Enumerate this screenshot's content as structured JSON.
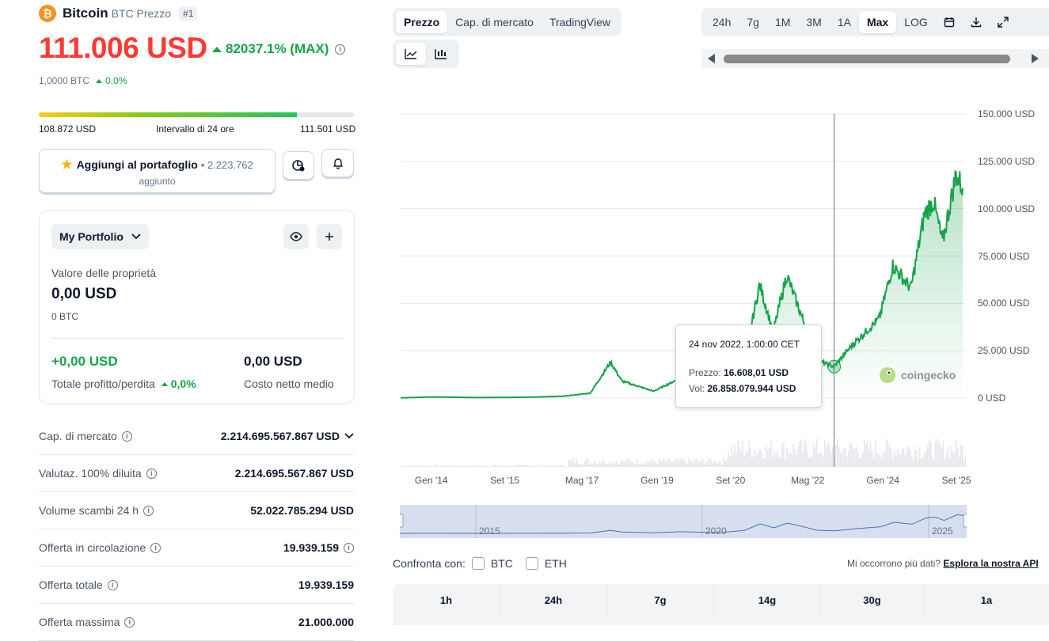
{
  "coin": {
    "logo_symbol": "₿",
    "name": "Bitcoin",
    "subtitle": "BTC Prezzo",
    "rank": "#1"
  },
  "price": {
    "value": "111.006 USD",
    "change": "82037.1% (MAX)",
    "btc_value": "1,0000 BTC",
    "btc_change": "0.0%"
  },
  "range24h": {
    "low": "108.872 USD",
    "label": "Intervallo di 24 ore",
    "high": "111.501 USD",
    "position_fraction": 0.82
  },
  "portfolio_button": {
    "label": "Aggiungi al portafoglio",
    "count": "• 2.223.762",
    "sub": "aggiunto"
  },
  "portfolio_card": {
    "dropdown_label": "My Portfolio",
    "holdings_label": "Valore delle proprietà",
    "holdings_value": "0,00 USD",
    "holdings_btc": "0 BTC",
    "pnl_value": "+0,00 USD",
    "pnl_label": "Totale profitto/perdita",
    "pnl_change": "0,0%",
    "cost_value": "0,00 USD",
    "cost_label": "Costo netto medio"
  },
  "stats": [
    {
      "key": "Cap. di mercato",
      "value": "2.214.695.567.867 USD"
    },
    {
      "key": "Valutaz. 100% diluita",
      "value": "2.214.695.567.867 USD"
    },
    {
      "key": "Volume scambi 24 h",
      "value": "52.022.785.294 USD"
    },
    {
      "key": "Offerta in circolazione",
      "value": "19.939.159"
    },
    {
      "key": "Offerta totale",
      "value": "19.939.159"
    },
    {
      "key": "Offerta massima",
      "value": "21.000.000"
    }
  ],
  "chart_tabs": [
    "Prezzo",
    "Cap. di mercato",
    "TradingView"
  ],
  "range_tabs": [
    "24h",
    "7g",
    "1M",
    "3M",
    "1A",
    "Max",
    "LOG"
  ],
  "active_range": "Max",
  "chart_data": {
    "type": "area",
    "yticks": [
      "150.000 USD",
      "125.000 USD",
      "100.000 USD",
      "75.000 USD",
      "50.000 USD",
      "25.000 USD",
      "0 USD"
    ],
    "ylim": [
      0,
      150000
    ],
    "xticks": [
      "Gen '14",
      "Set '15",
      "Mag '17",
      "Gen '19",
      "Set '20",
      "Mag '22",
      "Gen '24",
      "Set '25"
    ],
    "navigator_labels": [
      "2015",
      "2020",
      "2025"
    ],
    "series": [
      {
        "color": "#16a34a",
        "x": [
          2013.3,
          2014.0,
          2015.0,
          2016.0,
          2016.9,
          2017.5,
          2017.95,
          2018.2,
          2018.9,
          2019.5,
          2020.0,
          2020.5,
          2020.9,
          2021.25,
          2021.55,
          2021.85,
          2022.2,
          2022.5,
          2022.9,
          2023.3,
          2023.9,
          2024.2,
          2024.6,
          2024.9,
          2025.1,
          2025.3,
          2025.6,
          2025.75
        ],
        "y": [
          100,
          600,
          250,
          420,
          950,
          2600,
          19000,
          9000,
          3600,
          10500,
          7200,
          9200,
          19000,
          60000,
          35000,
          65000,
          42000,
          20000,
          16608,
          28000,
          42000,
          70000,
          58000,
          97000,
          104000,
          82000,
          118000,
          111006
        ]
      }
    ],
    "tooltip": {
      "date": "24 nov 2022, 1:00:00 CET",
      "price_label": "Prezzo:",
      "price": "16.608,01 USD",
      "vol_label": "Vol:",
      "volume": "26.858.079.944 USD"
    },
    "watermark": "coingecko"
  },
  "compare": {
    "label": "Confronta con:",
    "options": [
      "BTC",
      "ETH"
    ]
  },
  "api_prompt": {
    "text": "Mi occorrono più dati?",
    "link": "Esplora la nostra API"
  },
  "period_headers": [
    "1h",
    "24h",
    "7g",
    "14g",
    "30g",
    "1a"
  ]
}
